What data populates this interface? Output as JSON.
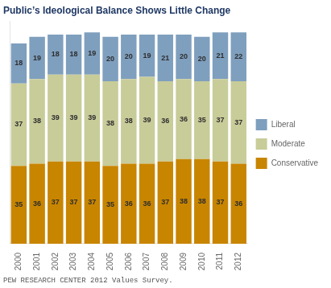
{
  "chart_data": {
    "type": "bar",
    "title": "Public’s Ideological Balance Shows Little Change",
    "annotations": [
      "PEW RESEARCH CENTER 2012 Values Survey."
    ],
    "categories": [
      "2000",
      "2001",
      "2002",
      "2003",
      "2004",
      "2005",
      "2006",
      "2007",
      "2008",
      "2009",
      "2010",
      "2011",
      "2012"
    ],
    "series": [
      {
        "name": "Conservative",
        "color": "#c88500",
        "values": [
          35,
          36,
          37,
          37,
          37,
          35,
          36,
          36,
          37,
          38,
          38,
          37,
          36
        ]
      },
      {
        "name": "Moderate",
        "color": "#c8cc99",
        "values": [
          37,
          38,
          39,
          39,
          39,
          38,
          38,
          39,
          36,
          36,
          35,
          37,
          37
        ]
      },
      {
        "name": "Liberal",
        "color": "#7f9fbe",
        "values": [
          18,
          19,
          18,
          18,
          19,
          20,
          20,
          19,
          21,
          20,
          20,
          21,
          22
        ]
      }
    ],
    "ylim": [
      0,
      100
    ],
    "stacked": true,
    "data_labels": true,
    "tick_labels": "x",
    "grid": false,
    "legend": "right"
  }
}
